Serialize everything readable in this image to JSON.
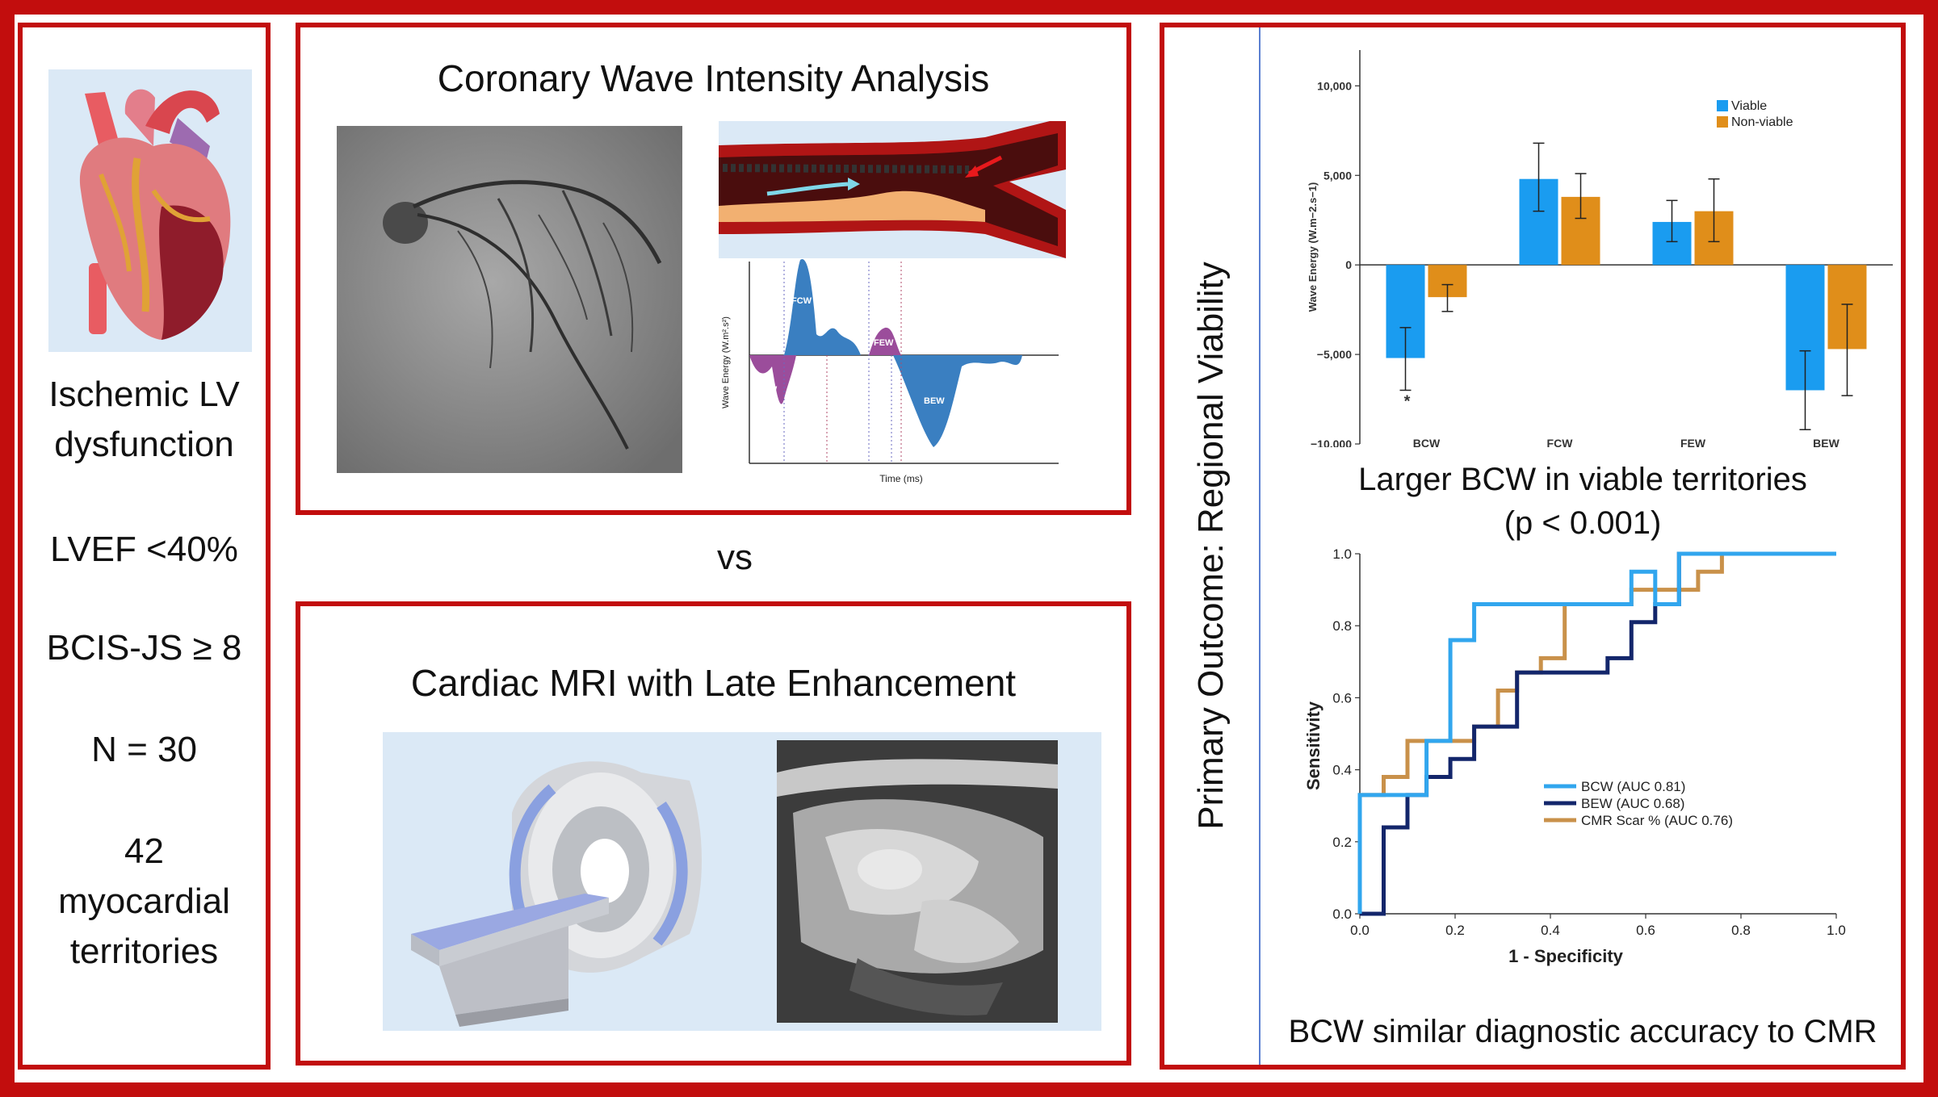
{
  "colors": {
    "frame_red": "#c20d0d",
    "viable_blue": "#1a9cf0",
    "nonviable_orange": "#e08e1a",
    "roc_light_blue": "#31a6ee",
    "roc_navy": "#13266b",
    "roc_tan": "#c9914a"
  },
  "left_panel": {
    "heart_icon": "heart-illustration",
    "lines": [
      "Ischemic LV",
      "dysfunction",
      "LVEF <40%",
      "BCIS-JS ≥ 8",
      "N = 30",
      "42",
      "myocardial",
      "territories"
    ]
  },
  "cwia_panel": {
    "title": "Coronary Wave Intensity Analysis",
    "wave_plot": {
      "ylabel": "Wave Energy (W.m².s²)",
      "xlabel": "Time (ms)",
      "labels": {
        "fcw": "FCW",
        "few": "FEW",
        "bcw": "BCW",
        "bew": "BEW"
      }
    }
  },
  "vs_label": "vs",
  "cmr_panel": {
    "title": "Cardiac MRI with Late Enhancement"
  },
  "right_panel": {
    "side_title": "Primary Outcome: Regional Viability",
    "bar_caption_1": "Larger BCW in viable territories",
    "bar_caption_2": "(p < 0.001)",
    "roc_caption": "BCW similar diagnostic accuracy to CMR"
  },
  "chart_data": [
    {
      "type": "bar",
      "categories": [
        "BCW",
        "FCW",
        "FEW",
        "BEW"
      ],
      "series": [
        {
          "name": "Viable",
          "values": [
            -5200,
            4800,
            2400,
            -7000
          ],
          "err_low": [
            -7000,
            3000,
            1300,
            -9200
          ],
          "err_high": [
            -3500,
            6800,
            3600,
            -4800
          ]
        },
        {
          "name": "Non-viable",
          "values": [
            -1800,
            3800,
            3000,
            -4700
          ],
          "err_low": [
            -2600,
            2600,
            1300,
            -7300
          ],
          "err_high": [
            -1100,
            5100,
            4800,
            -2200
          ]
        }
      ],
      "yticks": [
        10000,
        5000,
        0,
        -5000,
        -10000
      ],
      "ytick_labels": [
        "10,000",
        "5,000",
        "0",
        "−5,000",
        "−10,000"
      ],
      "ylabel": "Wave Energy (W.m−2.s−1)",
      "ylim": [
        -10000,
        12000
      ],
      "legend": "top-right",
      "annotation": "*"
    },
    {
      "type": "line",
      "xlabel": "1 - Specificity",
      "ylabel": "Sensitivity",
      "xticks": [
        0,
        0.2,
        0.4,
        0.6,
        0.8,
        1
      ],
      "xtick_labels": [
        "0.0",
        "0.2",
        "0.4",
        "0.6",
        "0.8",
        "1.0"
      ],
      "yticks": [
        0,
        0.2,
        0.4,
        0.6,
        0.8,
        1
      ],
      "ytick_labels": [
        "0.0",
        "0.2",
        "0.4",
        "0.6",
        "0.8",
        "1.0"
      ],
      "xlim": [
        0,
        1
      ],
      "ylim": [
        0,
        1
      ],
      "legend": "lower-right",
      "series": [
        {
          "name": "BCW (AUC 0.81)",
          "x": [
            0,
            0,
            0.14,
            0.14,
            0.19,
            0.19,
            0.24,
            0.24,
            0.57,
            0.57,
            0.62,
            0.62,
            0.67,
            0.67,
            1.0
          ],
          "y": [
            0,
            0.33,
            0.33,
            0.48,
            0.48,
            0.76,
            0.76,
            0.86,
            0.86,
            0.95,
            0.95,
            0.86,
            0.86,
            1.0,
            1.0
          ]
        },
        {
          "name": "BEW (AUC 0.68)",
          "x": [
            0,
            0,
            0.05,
            0.05,
            0.1,
            0.1,
            0.14,
            0.14,
            0.19,
            0.19,
            0.24,
            0.24,
            0.33,
            0.33,
            0.52,
            0.52,
            0.57,
            0.57,
            0.62,
            0.62,
            0.67,
            0.67,
            1.0
          ],
          "y": [
            0,
            0,
            0,
            0.24,
            0.24,
            0.33,
            0.33,
            0.38,
            0.38,
            0.43,
            0.43,
            0.52,
            0.52,
            0.67,
            0.67,
            0.71,
            0.71,
            0.81,
            0.81,
            0.86,
            0.86,
            1.0,
            1.0
          ]
        },
        {
          "name": "CMR Scar % (AUC 0.76)",
          "x": [
            0,
            0,
            0.05,
            0.05,
            0.1,
            0.1,
            0.24,
            0.24,
            0.29,
            0.29,
            0.33,
            0.33,
            0.38,
            0.38,
            0.43,
            0.43,
            0.57,
            0.57,
            0.71,
            0.71,
            0.76,
            0.76,
            1.0
          ],
          "y": [
            0,
            0.33,
            0.33,
            0.38,
            0.38,
            0.48,
            0.48,
            0.52,
            0.52,
            0.62,
            0.62,
            0.67,
            0.67,
            0.71,
            0.71,
            0.86,
            0.86,
            0.9,
            0.9,
            0.95,
            0.95,
            1.0,
            1.0
          ]
        }
      ]
    }
  ]
}
